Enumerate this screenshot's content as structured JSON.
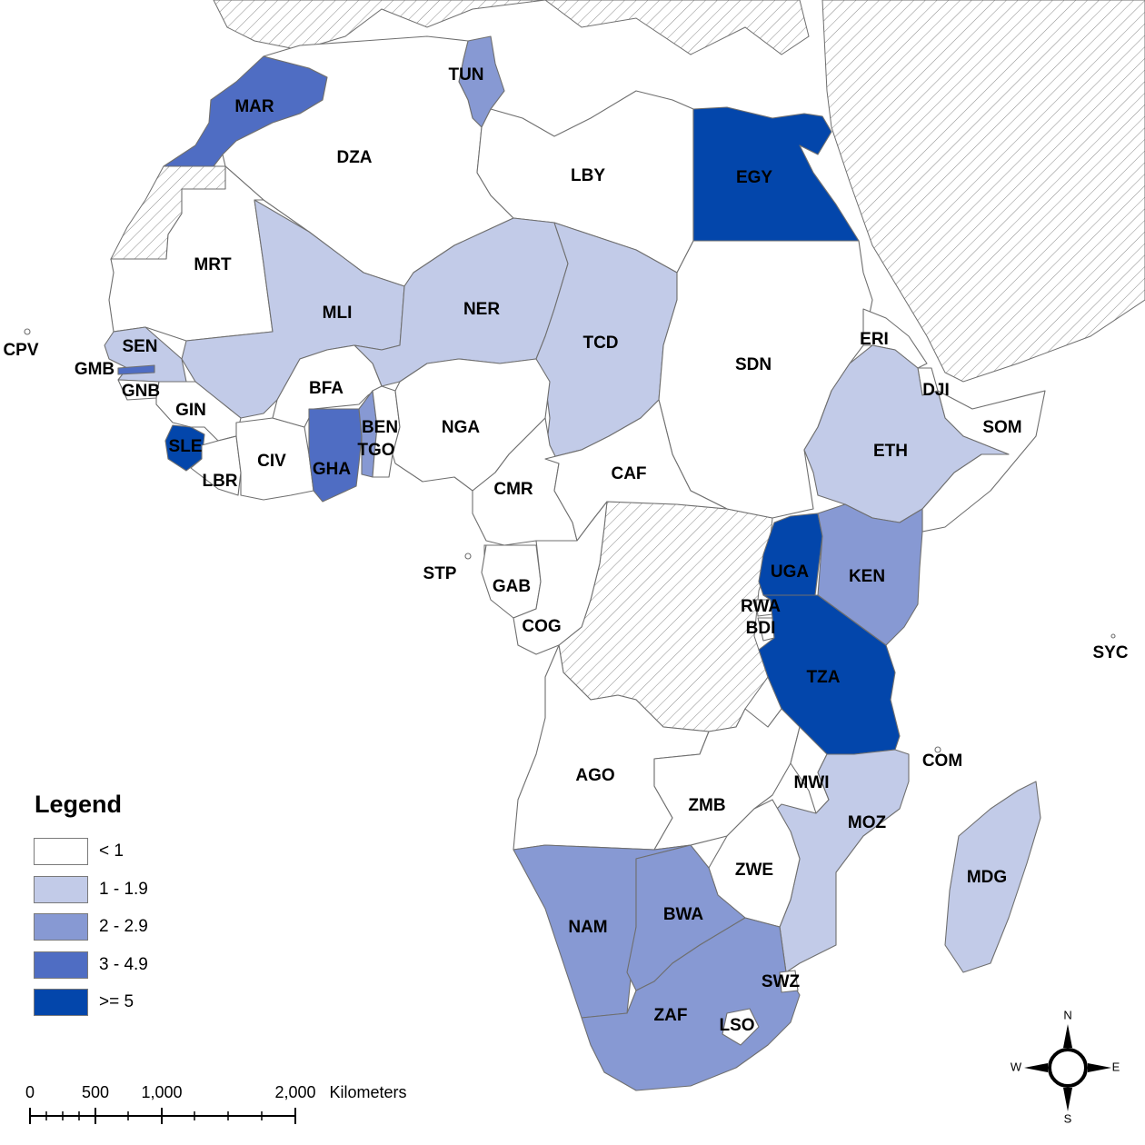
{
  "legend": {
    "title": "Legend",
    "classes": [
      {
        "label": "< 1",
        "color": "#ffffff"
      },
      {
        "label": "1 - 1.9",
        "color": "#c2cbe8"
      },
      {
        "label": "2 - 2.9",
        "color": "#8799d3"
      },
      {
        "label": "3 - 4.9",
        "color": "#4f6dc3"
      },
      {
        "label": ">= 5",
        "color": "#0346ab"
      }
    ],
    "no_data_pattern": "diagonal-hatch"
  },
  "countries": [
    {
      "code": "MAR",
      "class": 3
    },
    {
      "code": "TUN",
      "class": 2
    },
    {
      "code": "DZA",
      "class": 0
    },
    {
      "code": "LBY",
      "class": 0
    },
    {
      "code": "EGY",
      "class": 4
    },
    {
      "code": "MRT",
      "class": 0
    },
    {
      "code": "MLI",
      "class": 1
    },
    {
      "code": "NER",
      "class": 1
    },
    {
      "code": "TCD",
      "class": 1
    },
    {
      "code": "SDN",
      "class": 0
    },
    {
      "code": "ERI",
      "class": 0
    },
    {
      "code": "DJI",
      "class": 0
    },
    {
      "code": "SOM",
      "class": 0
    },
    {
      "code": "ETH",
      "class": 1
    },
    {
      "code": "SEN",
      "class": 1
    },
    {
      "code": "GMB",
      "class": 3
    },
    {
      "code": "GNB",
      "class": 0
    },
    {
      "code": "GIN",
      "class": 0
    },
    {
      "code": "SLE",
      "class": 4
    },
    {
      "code": "LBR",
      "class": 0
    },
    {
      "code": "CIV",
      "class": 0
    },
    {
      "code": "BFA",
      "class": 0
    },
    {
      "code": "GHA",
      "class": 3
    },
    {
      "code": "TGO",
      "class": 2
    },
    {
      "code": "BEN",
      "class": 0
    },
    {
      "code": "NGA",
      "class": 0
    },
    {
      "code": "CMR",
      "class": 0
    },
    {
      "code": "CAF",
      "class": 0
    },
    {
      "code": "STP",
      "class": 0
    },
    {
      "code": "GAB",
      "class": 0
    },
    {
      "code": "COG",
      "class": 0
    },
    {
      "code": "UGA",
      "class": 4
    },
    {
      "code": "KEN",
      "class": 2
    },
    {
      "code": "RWA",
      "class": 0
    },
    {
      "code": "BDI",
      "class": 0
    },
    {
      "code": "TZA",
      "class": 4
    },
    {
      "code": "AGO",
      "class": 0
    },
    {
      "code": "ZMB",
      "class": 0
    },
    {
      "code": "MWI",
      "class": 0
    },
    {
      "code": "MOZ",
      "class": 1
    },
    {
      "code": "ZWE",
      "class": 0
    },
    {
      "code": "NAM",
      "class": 2
    },
    {
      "code": "BWA",
      "class": 2
    },
    {
      "code": "ZAF",
      "class": 2
    },
    {
      "code": "SWZ",
      "class": 0
    },
    {
      "code": "LSO",
      "class": 0
    },
    {
      "code": "MDG",
      "class": 1
    },
    {
      "code": "COM",
      "class": 0
    },
    {
      "code": "SYC",
      "class": 0
    },
    {
      "code": "CPV",
      "class": 0
    }
  ],
  "scale_bar": {
    "ticks": [
      "0",
      "500",
      "1,000",
      "2,000"
    ],
    "unit": "Kilometers"
  },
  "north_arrow": {
    "n": "N",
    "s": "S",
    "e": "E",
    "w": "W"
  }
}
